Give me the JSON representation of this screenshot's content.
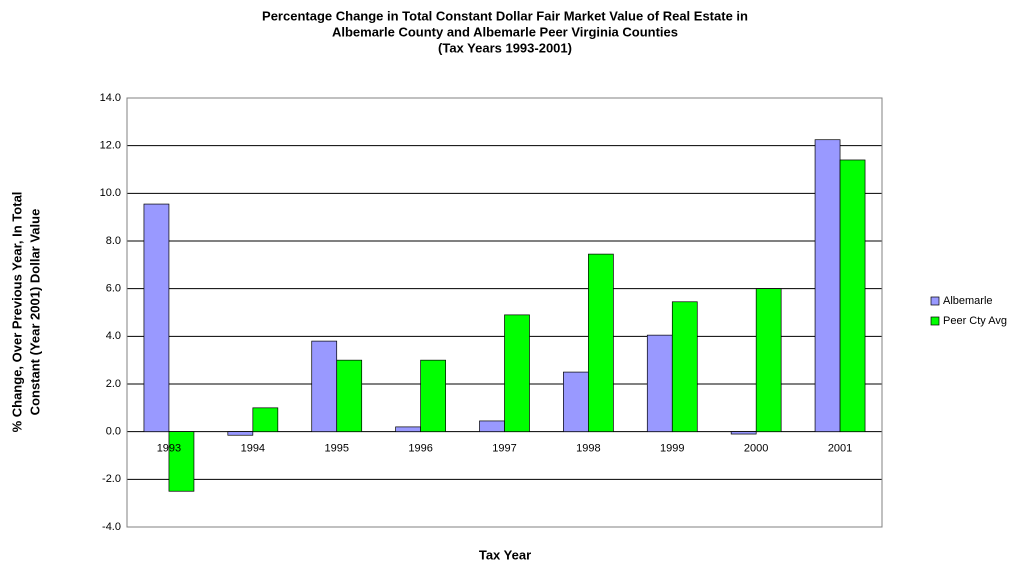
{
  "chart_data": {
    "type": "bar",
    "title": [
      "Percentage Change in Total Constant Dollar Fair Market Value of Real Estate in",
      "Albemarle County and Albemarle Peer Virginia Counties",
      "(Tax Years 1993-2001)"
    ],
    "x_label": "Tax Year",
    "y_label": [
      "% Change, Over Previous Year, In Total",
      "Constant (Year 2001) Dollar Value"
    ],
    "categories": [
      "1993",
      "1994",
      "1995",
      "1996",
      "1997",
      "1998",
      "1999",
      "2000",
      "2001"
    ],
    "series": [
      {
        "name": "Albemarle",
        "color": "#9999ff",
        "values": [
          9.55,
          -0.15,
          3.8,
          0.2,
          0.45,
          2.5,
          4.05,
          -0.1,
          12.25
        ]
      },
      {
        "name": "Peer Cty Avg",
        "color": "#00ff00",
        "values": [
          -2.5,
          1.0,
          3.0,
          3.0,
          4.9,
          7.45,
          5.45,
          6.0,
          11.4
        ]
      }
    ],
    "ylim": [
      -4,
      14
    ],
    "yticks": [
      {
        "value": -4,
        "label": "-4.0"
      },
      {
        "value": -2,
        "label": "-2.0"
      },
      {
        "value": 0,
        "label": "0.0"
      },
      {
        "value": 2,
        "label": "2.0"
      },
      {
        "value": 4,
        "label": "4.0"
      },
      {
        "value": 6,
        "label": "6.0"
      },
      {
        "value": 8,
        "label": "8.0"
      },
      {
        "value": 10,
        "label": "10.0"
      },
      {
        "value": 12,
        "label": "12.0"
      },
      {
        "value": 14,
        "label": "14.0"
      }
    ],
    "grid": true,
    "legend": "right"
  }
}
